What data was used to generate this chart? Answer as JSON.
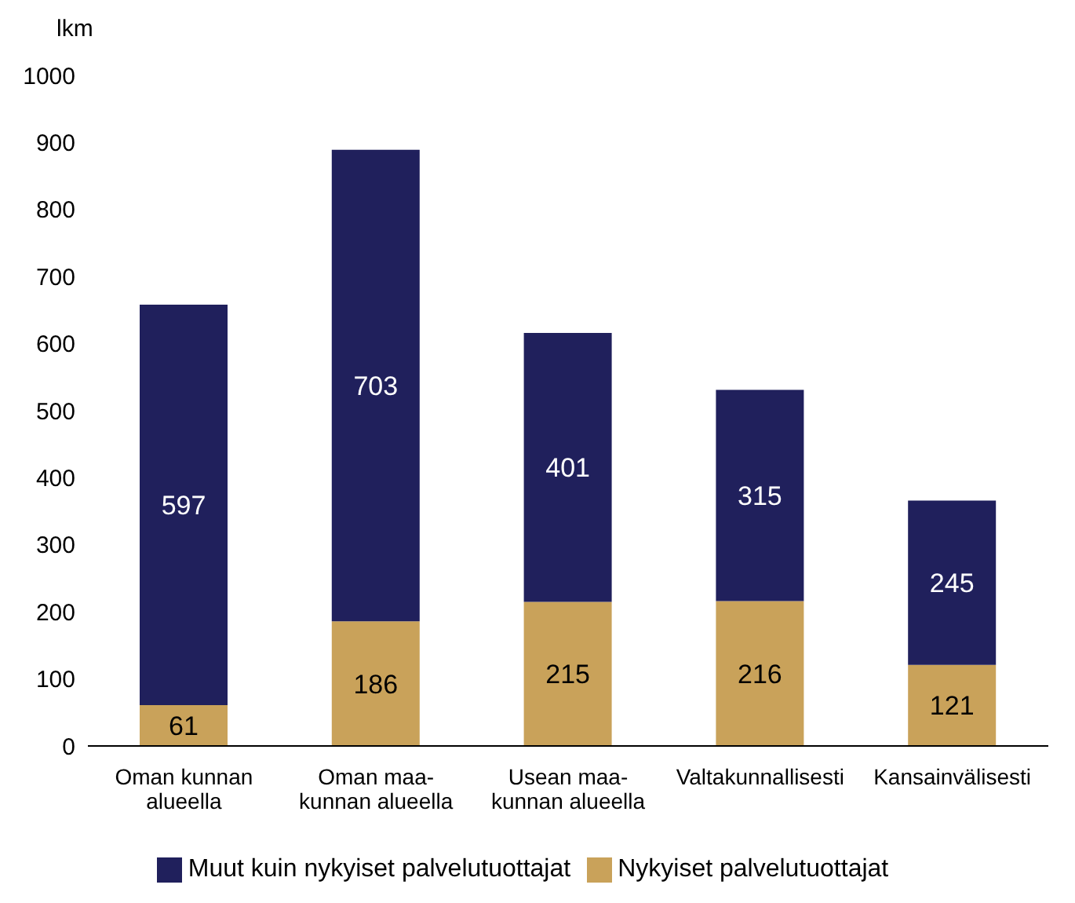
{
  "chart_data": {
    "type": "bar",
    "stacked": true,
    "ylabel": "lkm",
    "categories": [
      "Oman kunnan\nalueella",
      "Oman maa-\nkunnan alueella",
      "Usean maa-\nkunnan alueella",
      "Valtakunnallisesti",
      "Kansainvälisesti"
    ],
    "series": [
      {
        "name": "Nykyiset palvelutuottajat",
        "color": "#c9a25a",
        "values": [
          61,
          186,
          215,
          216,
          121
        ]
      },
      {
        "name": "Muut kuin nykyiset palvelutuottajat",
        "color": "#20205c",
        "values": [
          597,
          703,
          401,
          315,
          245
        ]
      }
    ],
    "ylim": [
      0,
      1000
    ],
    "yticks": [
      0,
      100,
      200,
      300,
      400,
      500,
      600,
      700,
      800,
      900,
      1000
    ],
    "data_labels": true,
    "grid": false,
    "legend": "bottom"
  }
}
